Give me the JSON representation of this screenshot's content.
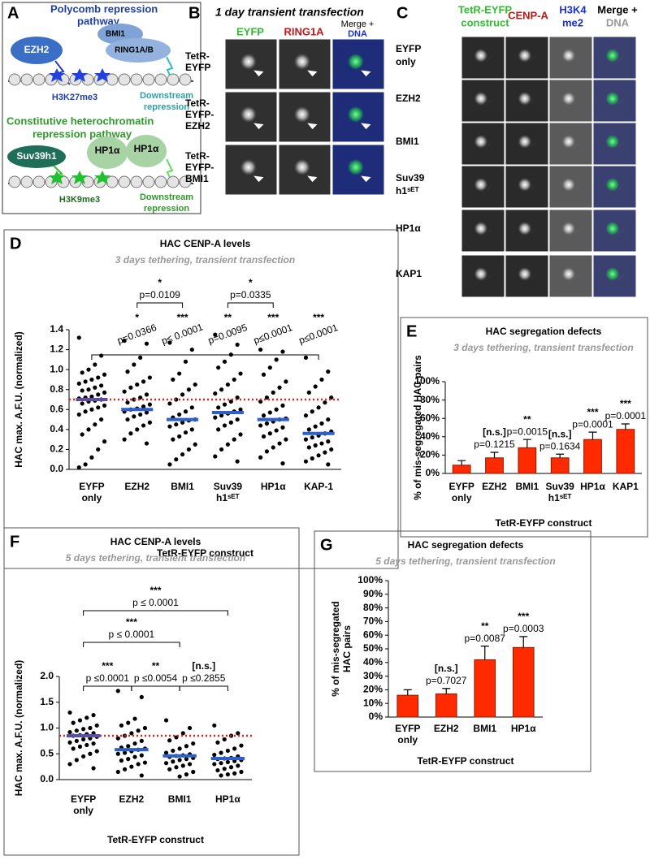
{
  "panel_a": {
    "letter": "A",
    "polycomb_title": [
      "Polycomb repression",
      "pathway"
    ],
    "ezh2": "EZH2",
    "bmi1": "BMI1",
    "ring1": "RING1A/B",
    "h3k27": "H3K27me3",
    "downstream_1": [
      "Downstream",
      "repression"
    ],
    "hetero_title": [
      "Constitutive heterochromatin",
      "repression pathway"
    ],
    "suv39": "Suv39h1",
    "hp1_left": "HP1α",
    "hp1_right": "HP1α",
    "h3k9": "H3K9me3",
    "downstream_2": [
      "Downstream",
      "repression"
    ]
  },
  "panel_b": {
    "letter": "B",
    "title": "1 day transient transfection",
    "col_eyfp": "EYFP",
    "col_ring1a": "RING1A",
    "col_merge": "Merge +",
    "col_dna": "DNA",
    "rows": [
      [
        "TetR-",
        "EYFP"
      ],
      [
        "TetR-",
        "EYFP-",
        "EZH2"
      ],
      [
        "TetR-",
        "EYFP-",
        "BMI1"
      ]
    ]
  },
  "panel_c": {
    "letter": "C",
    "col_construct": [
      "TetR-EYFP",
      "construct"
    ],
    "col_cenpa": "CENP-A",
    "col_h3k4": [
      "H3K4",
      "me2"
    ],
    "col_merge": "Merge +",
    "col_dna": "DNA",
    "rows": [
      [
        "EYFP",
        "only"
      ],
      [
        "EZH2"
      ],
      [
        "BMI1"
      ],
      [
        "Suv39",
        "h1ˢᴱᵀ"
      ],
      [
        "HP1α"
      ],
      [
        "KAP1"
      ]
    ]
  },
  "chart_data": [
    {
      "type": "dotplot",
      "letter": "D",
      "title": "HAC CENP-A levels",
      "subtitle": "3 days tethering, transient transfection",
      "xlabel": "TetR-EYFP construct",
      "ylabel": "HAC max. A.F.U. (normalized)",
      "categories": [
        "EYFP\nonly",
        "EZH2",
        "BMI1",
        "Suv39\nh1ˢᴱᵀ",
        "HP1α",
        "KAP-1"
      ],
      "points": [
        [
          1.32,
          1.14,
          1.05,
          1.0,
          0.97,
          0.95,
          0.92,
          0.9,
          0.88,
          0.86,
          0.84,
          0.82,
          0.8,
          0.79,
          0.77,
          0.75,
          0.73,
          0.72,
          0.71,
          0.7,
          0.69,
          0.68,
          0.66,
          0.64,
          0.62,
          0.6,
          0.58,
          0.55,
          0.5,
          0.45,
          0.4,
          0.35,
          0.28,
          0.2,
          0.12,
          0.05,
          0.02
        ],
        [
          1.29,
          1.26,
          1.12,
          1.05,
          0.98,
          0.92,
          0.88,
          0.85,
          0.82,
          0.78,
          0.75,
          0.72,
          0.7,
          0.67,
          0.65,
          0.63,
          0.61,
          0.6,
          0.58,
          0.57,
          0.55,
          0.53,
          0.5,
          0.47,
          0.44,
          0.4,
          0.36,
          0.3,
          0.26
        ],
        [
          1.27,
          1.2,
          1.08,
          0.96,
          0.9,
          0.85,
          0.8,
          0.75,
          0.7,
          0.66,
          0.62,
          0.58,
          0.55,
          0.52,
          0.5,
          0.49,
          0.47,
          0.45,
          0.43,
          0.4,
          0.37,
          0.33,
          0.3,
          0.25,
          0.2,
          0.15,
          0.1,
          0.05
        ],
        [
          1.35,
          1.25,
          1.15,
          1.08,
          1.02,
          0.96,
          0.9,
          0.85,
          0.8,
          0.76,
          0.72,
          0.68,
          0.65,
          0.62,
          0.6,
          0.58,
          0.56,
          0.54,
          0.52,
          0.5,
          0.47,
          0.44,
          0.4,
          0.35,
          0.3,
          0.25,
          0.2,
          0.13,
          0.08
        ],
        [
          1.2,
          1.18,
          1.1,
          1.02,
          0.95,
          0.88,
          0.82,
          0.77,
          0.72,
          0.68,
          0.64,
          0.6,
          0.57,
          0.54,
          0.51,
          0.5,
          0.48,
          0.46,
          0.44,
          0.42,
          0.39,
          0.36,
          0.33,
          0.3,
          0.26,
          0.22,
          0.18,
          0.12,
          0.06
        ],
        [
          1.12,
          0.98,
          0.9,
          0.83,
          0.77,
          0.72,
          0.67,
          0.62,
          0.58,
          0.54,
          0.5,
          0.46,
          0.43,
          0.4,
          0.38,
          0.36,
          0.34,
          0.32,
          0.3,
          0.28,
          0.26,
          0.24,
          0.22,
          0.2,
          0.17,
          0.14,
          0.11,
          0.08,
          0.05
        ]
      ],
      "medians": [
        0.7,
        0.6,
        0.5,
        0.57,
        0.5,
        0.36
      ],
      "median_color": "#2f5fc8",
      "point_color": "#000000",
      "reference_line": 0.7,
      "reference_color": "#e02020",
      "ylim": [
        0,
        1.4
      ],
      "yticks": [
        {
          "value": 0,
          "label": "0.0"
        },
        {
          "value": 0.2,
          "label": "0.2"
        },
        {
          "value": 0.4,
          "label": "0.4"
        },
        {
          "value": 0.6,
          "label": "0.6"
        },
        {
          "value": 0.8,
          "label": "0.8"
        },
        {
          "value": 1,
          "label": "1.0"
        },
        {
          "value": 1.2,
          "label": "1.2"
        },
        {
          "value": 1.4,
          "label": "1.4"
        }
      ],
      "comparisons": [
        {
          "pair": [
            "EZH2",
            "BMI1"
          ],
          "label": "*",
          "p": "p=0.0109"
        },
        {
          "pair": [
            "Suv39\nh1ˢᴱᵀ",
            "HP1α"
          ],
          "label": "*",
          "p": "p=0.0335"
        }
      ],
      "annotations": [
        null,
        {
          "label": "*",
          "p": "p=0.0366"
        },
        {
          "label": "***",
          "p": "p≤ 0.0001"
        },
        {
          "label": "**",
          "p": "p=0.0095"
        },
        {
          "label": "***",
          "p": "p≤0.0001"
        },
        {
          "label": "***",
          "p": "p≤0.0001"
        }
      ]
    },
    {
      "type": "bar",
      "letter": "E",
      "title": "HAC segregation defects",
      "subtitle": "3 days tethering, transient transfection",
      "xlabel": "TetR-EYFP construct",
      "ylabel": "% of mis-segregated HAC pairs",
      "categories": [
        "EYFP\nonly",
        "EZH2",
        "BMI1",
        "Suv39\nh1ˢᴱᵀ",
        "HP1α",
        "KAP1"
      ],
      "values": [
        9,
        17,
        28,
        17,
        37,
        48
      ],
      "errors": [
        5,
        6,
        9,
        4,
        8,
        6
      ],
      "color": "#ff2a00",
      "ylim": [
        0,
        100
      ],
      "yticks": [
        {
          "value": 0,
          "label": "0%"
        },
        {
          "value": 20,
          "label": "20%"
        },
        {
          "value": 40,
          "label": "40%"
        },
        {
          "value": 60,
          "label": "60%"
        },
        {
          "value": 80,
          "label": "80%"
        },
        {
          "value": 100,
          "label": "100%"
        }
      ],
      "annotations": [
        null,
        {
          "label": "[n.s.]",
          "p": "p=0.1215"
        },
        {
          "label": "**",
          "p": "p=0.0015"
        },
        {
          "label": "[n.s.]",
          "p": "p=0.1634"
        },
        {
          "label": "***",
          "p": "p=0.0001"
        },
        {
          "label": "***",
          "p": "p=0.0001"
        }
      ]
    },
    {
      "type": "dotplot",
      "letter": "F",
      "title": "HAC CENP-A levels",
      "subtitle": "5 days tethering, transient transfection",
      "xlabel": "TetR-EYFP construct",
      "ylabel": "HAC max. A.F.U. (normalized)",
      "categories": [
        "EYFP\nonly",
        "EZH2",
        "BMI1",
        "HP1α"
      ],
      "points": [
        [
          1.3,
          1.25,
          1.2,
          1.15,
          1.1,
          1.05,
          1.0,
          0.98,
          0.95,
          0.92,
          0.9,
          0.88,
          0.86,
          0.85,
          0.83,
          0.8,
          0.78,
          0.75,
          0.72,
          0.7,
          0.67,
          0.64,
          0.6,
          0.55,
          0.5,
          0.45,
          0.38,
          0.3,
          0.22
        ],
        [
          1.72,
          1.6,
          1.18,
          1.1,
          1.05,
          1.0,
          0.95,
          0.9,
          0.85,
          0.8,
          0.75,
          0.7,
          0.65,
          0.62,
          0.6,
          0.58,
          0.55,
          0.52,
          0.5,
          0.47,
          0.44,
          0.4,
          0.37,
          0.33,
          0.3,
          0.25,
          0.2,
          0.15,
          0.08
        ],
        [
          1.15,
          1.0,
          0.9,
          0.82,
          0.76,
          0.7,
          0.65,
          0.6,
          0.56,
          0.52,
          0.49,
          0.47,
          0.46,
          0.44,
          0.42,
          0.4,
          0.38,
          0.35,
          0.32,
          0.3,
          0.27,
          0.24,
          0.2,
          0.15,
          0.1,
          0.06
        ],
        [
          1.05,
          0.9,
          0.85,
          0.78,
          0.72,
          0.66,
          0.6,
          0.56,
          0.52,
          0.48,
          0.45,
          0.42,
          0.41,
          0.4,
          0.38,
          0.36,
          0.34,
          0.32,
          0.3,
          0.27,
          0.24,
          0.21,
          0.18,
          0.15,
          0.12,
          0.1,
          0.08
        ]
      ],
      "medians": [
        0.85,
        0.58,
        0.46,
        0.41
      ],
      "median_color": "#2f5fc8",
      "point_color": "#000000",
      "reference_line": 0.85,
      "reference_color": "#e02020",
      "ylim": [
        0,
        2
      ],
      "yticks": [
        {
          "value": 0,
          "label": "0.0"
        },
        {
          "value": 0.5,
          "label": "0.5"
        },
        {
          "value": 1,
          "label": "1.0"
        },
        {
          "value": 1.5,
          "label": "1.5"
        },
        {
          "value": 2,
          "label": "2.0"
        }
      ],
      "comparisons": [
        {
          "pair": [
            "EYFP\nonly",
            "HP1α"
          ],
          "label": "***",
          "p": "p ≤ 0.0001"
        },
        {
          "pair": [
            "EYFP\nonly",
            "BMI1"
          ],
          "label": "***",
          "p": "p ≤ 0.0001"
        },
        {
          "pair": [
            "EYFP\nonly",
            "EZH2"
          ],
          "label": "***",
          "p": "p ≤0.0001"
        },
        {
          "pair": [
            "EZH2",
            "BMI1"
          ],
          "label": "**",
          "p": "p ≤0.0054"
        },
        {
          "pair": [
            "BMI1",
            "HP1α"
          ],
          "label": "[n.s.]",
          "p": "p ≤0.2855"
        }
      ]
    },
    {
      "type": "bar",
      "letter": "G",
      "title": "HAC segregation defects",
      "subtitle": "5 days tethering, transient transfection",
      "xlabel": "TetR-EYFP construct",
      "ylabel": "% of mis-segregated\nHAC pairs",
      "categories": [
        "EYFP\nonly",
        "EZH2",
        "BMI1",
        "HP1α"
      ],
      "values": [
        16,
        17,
        42,
        51
      ],
      "errors": [
        4,
        4,
        10,
        8
      ],
      "color": "#ff2a00",
      "ylim": [
        0,
        100
      ],
      "yticks": [
        {
          "value": 0,
          "label": "0%"
        },
        {
          "value": 10,
          "label": "10%"
        },
        {
          "value": 20,
          "label": "20%"
        },
        {
          "value": 30,
          "label": "30%"
        },
        {
          "value": 40,
          "label": "40%"
        },
        {
          "value": 50,
          "label": "50%"
        },
        {
          "value": 60,
          "label": "60%"
        },
        {
          "value": 70,
          "label": "70%"
        },
        {
          "value": 80,
          "label": "80%"
        },
        {
          "value": 90,
          "label": "90%"
        },
        {
          "value": 100,
          "label": "100%"
        }
      ],
      "annotations": [
        null,
        {
          "label": "[n.s.]",
          "p": "p=0.7027"
        },
        {
          "label": "**",
          "p": "p=0.0087"
        },
        {
          "label": "***",
          "p": "p=0.0003"
        }
      ]
    }
  ]
}
